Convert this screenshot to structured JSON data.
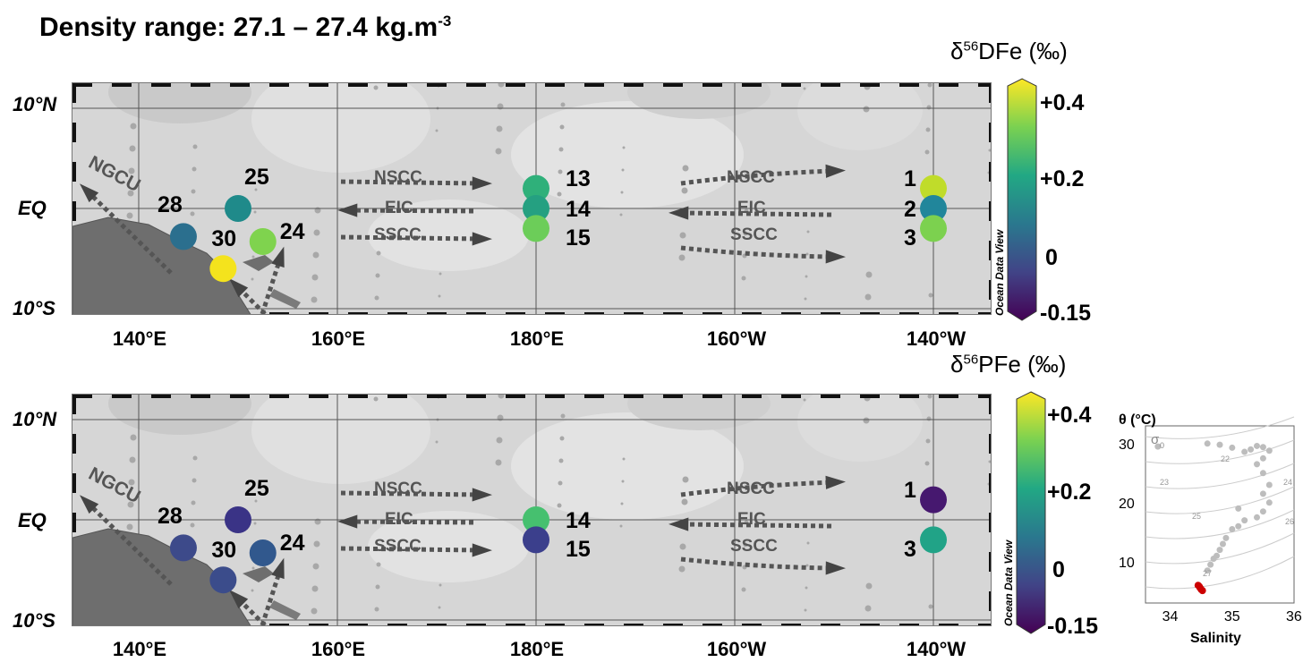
{
  "title": {
    "text": "Density range: 27.1 – 27.4 kg.m",
    "sup": "-3"
  },
  "lat_labels": [
    "10°N",
    "EQ",
    "10°S"
  ],
  "lon_labels": [
    "140°E",
    "160°E",
    "180°E",
    "160°W",
    "140°W"
  ],
  "currents": {
    "nscc": "NSCC",
    "eic": "EIC",
    "sscc": "SSCC",
    "ngcu": "NGCU"
  },
  "watermark": "Ocean Data View",
  "colorbar": {
    "ticks": [
      "+0.4",
      "+0.2",
      "0",
      "-0.15"
    ],
    "stops": [
      "#fde725",
      "#7ad151",
      "#22a884",
      "#2a788e",
      "#414487",
      "#440154"
    ]
  },
  "panels": [
    {
      "id": "dfe",
      "colorbar_title": {
        "pre": "δ",
        "sup": "56",
        "post": "DFe (‰)"
      },
      "stations": [
        {
          "label": "1",
          "lon": -140,
          "lat": 2,
          "color": "#c0dc2a"
        },
        {
          "label": "2",
          "lon": -140,
          "lat": 0,
          "color": "#21869b"
        },
        {
          "label": "3",
          "lon": -140,
          "lat": -2,
          "color": "#7cd14f"
        },
        {
          "label": "13",
          "lon": 180,
          "lat": 2,
          "color": "#2fb07a"
        },
        {
          "label": "14",
          "lon": 180,
          "lat": 0,
          "color": "#25a081"
        },
        {
          "label": "15",
          "lon": 180,
          "lat": -2,
          "color": "#6ccd59"
        },
        {
          "label": "25",
          "lon": 150,
          "lat": 0,
          "color": "#1f8a8a"
        },
        {
          "label": "28",
          "lon": 144.5,
          "lat": -2.8,
          "color": "#2b6f8e"
        },
        {
          "label": "24",
          "lon": 152.5,
          "lat": -3.3,
          "color": "#7fd34e"
        },
        {
          "label": "30",
          "lon": 148.5,
          "lat": -6,
          "color": "#f4e31d"
        }
      ]
    },
    {
      "id": "pfe",
      "colorbar_title": {
        "pre": "δ",
        "sup": "56",
        "post": "PFe (‰)"
      },
      "stations": [
        {
          "label": "1",
          "lon": -140,
          "lat": 2,
          "color": "#46186f"
        },
        {
          "label": "3",
          "lon": -140,
          "lat": -2,
          "color": "#21a387"
        },
        {
          "label": "14",
          "lon": 180,
          "lat": 0,
          "color": "#46c06f"
        },
        {
          "label": "15",
          "lon": 180,
          "lat": -2,
          "color": "#3b3f8c"
        },
        {
          "label": "25",
          "lon": 150,
          "lat": 0,
          "color": "#3a3386"
        },
        {
          "label": "28",
          "lon": 144.5,
          "lat": -2.8,
          "color": "#3d4a8a"
        },
        {
          "label": "24",
          "lon": 152.5,
          "lat": -3.3,
          "color": "#31588d"
        },
        {
          "label": "30",
          "lon": 148.5,
          "lat": -6,
          "color": "#3b4c8b"
        }
      ]
    }
  ],
  "ts_diagram": {
    "ylabel": "θ (°C)",
    "xlabel": "Salinity",
    "sigma_label": "σ",
    "sigma_sub": "0",
    "x_ticks": [
      "34",
      "35",
      "36"
    ],
    "y_ticks": [
      "30",
      "20",
      "10"
    ],
    "isopycnal_labels": [
      "22",
      "23",
      "24",
      "25",
      "26",
      "27"
    ],
    "grey_color": "#bdbdbd",
    "highlight_color": "#cc0000",
    "grey_points": [
      [
        33.8,
        29.5
      ],
      [
        34.6,
        30
      ],
      [
        34.8,
        29.8
      ],
      [
        35.0,
        29.3
      ],
      [
        35.2,
        28.6
      ],
      [
        35.3,
        29
      ],
      [
        35.4,
        29.6
      ],
      [
        35.5,
        29.4
      ],
      [
        35.5,
        27.5
      ],
      [
        35.6,
        28.8
      ],
      [
        35.4,
        26.5
      ],
      [
        35.5,
        25
      ],
      [
        35.6,
        23
      ],
      [
        35.5,
        21.5
      ],
      [
        35.6,
        20
      ],
      [
        35.5,
        18.5
      ],
      [
        35.4,
        17.5
      ],
      [
        35.2,
        17
      ],
      [
        35.1,
        19
      ],
      [
        35.1,
        16
      ],
      [
        35.0,
        15.5
      ],
      [
        34.9,
        14
      ],
      [
        34.85,
        13
      ],
      [
        34.8,
        12
      ],
      [
        34.75,
        11
      ],
      [
        34.7,
        10.5
      ],
      [
        34.65,
        9.5
      ],
      [
        34.6,
        8.5
      ]
    ],
    "highlight_points": [
      [
        34.45,
        6
      ],
      [
        34.48,
        5.6
      ],
      [
        34.5,
        5.3
      ],
      [
        34.52,
        5.1
      ],
      [
        34.47,
        5.8
      ]
    ]
  }
}
